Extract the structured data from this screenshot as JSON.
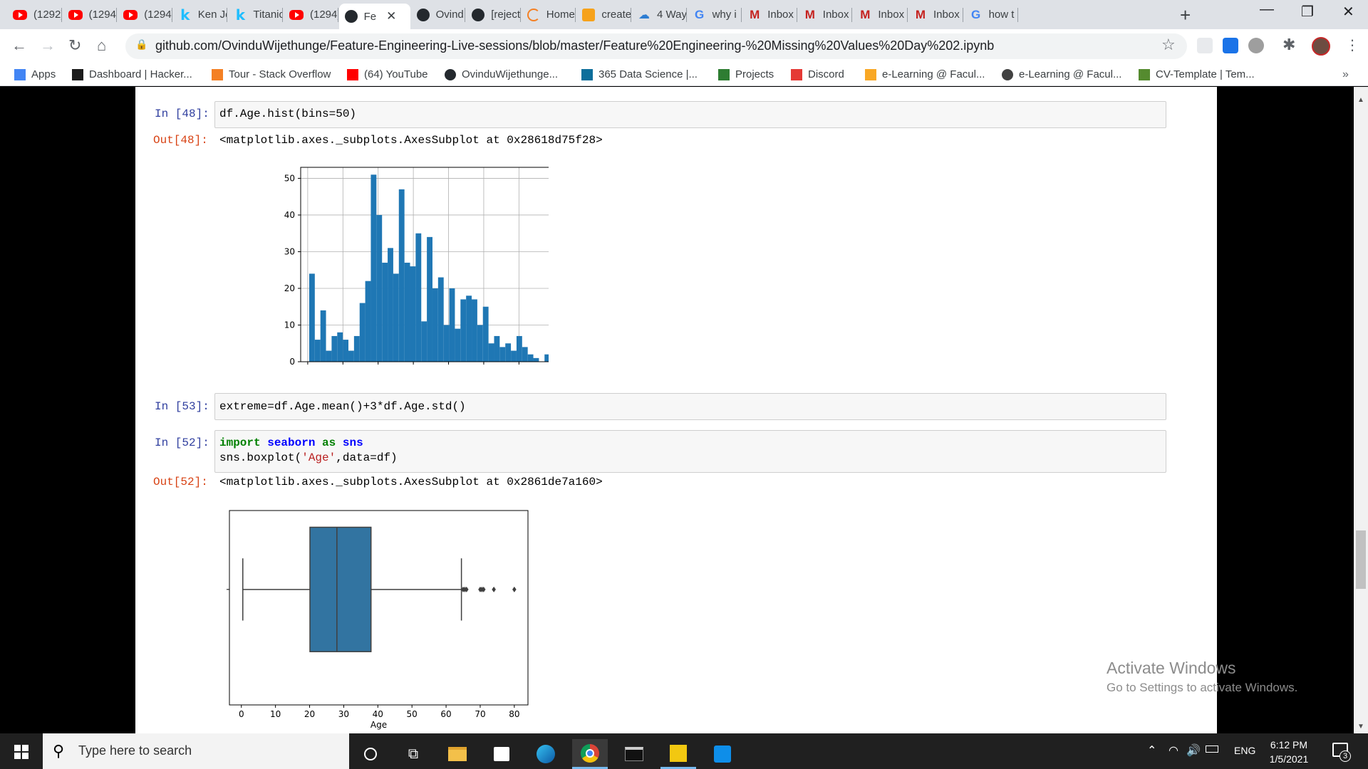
{
  "browser": {
    "tabs": [
      {
        "title": "(1292)",
        "icon": "youtube-icon"
      },
      {
        "title": "(1294)",
        "icon": "youtube-icon"
      },
      {
        "title": "(1294)",
        "icon": "youtube-icon"
      },
      {
        "title": "Ken Je",
        "icon": "kaggle-icon"
      },
      {
        "title": "Titanic",
        "icon": "kaggle-icon"
      },
      {
        "title": "(1294)",
        "icon": "youtube-icon"
      },
      {
        "title": "Fe",
        "icon": "github-icon",
        "active": true
      },
      {
        "title": "Ovind",
        "icon": "github-icon"
      },
      {
        "title": "[reject",
        "icon": "github-icon"
      },
      {
        "title": "Home",
        "icon": "home-loader-icon"
      },
      {
        "title": "create",
        "icon": "create-icon"
      },
      {
        "title": "4 Way",
        "icon": "cloud-icon"
      },
      {
        "title": "why i",
        "icon": "google-icon"
      },
      {
        "title": "Inbox",
        "icon": "gmail-icon"
      },
      {
        "title": "Inbox",
        "icon": "gmail-icon"
      },
      {
        "title": "Inbox",
        "icon": "gmail-icon"
      },
      {
        "title": "Inbox",
        "icon": "gmail-icon"
      },
      {
        "title": "how t",
        "icon": "google-icon"
      }
    ],
    "url": "github.com/OvinduWijethunge/Feature-Engineering-Live-sessions/blob/master/Feature%20Engineering-%20Missing%20Values%20Day%202.ipynb",
    "bookmarks": [
      {
        "label": "Apps",
        "icon": "apps-grid-icon"
      },
      {
        "label": "Dashboard | Hacker...",
        "icon": "hackerrank-icon"
      },
      {
        "label": "Tour - Stack Overflow",
        "icon": "stackoverflow-icon"
      },
      {
        "label": "(64) YouTube",
        "icon": "youtube-icon"
      },
      {
        "label": "OvinduWijethunge...",
        "icon": "github-icon"
      },
      {
        "label": "365 Data Science |...",
        "icon": "datascience-icon"
      },
      {
        "label": "Projects",
        "icon": "projects-icon"
      },
      {
        "label": "Discord",
        "icon": "discord-icon"
      },
      {
        "label": "e-Learning @ Facul...",
        "icon": "elearning-icon"
      },
      {
        "label": "e-Learning @ Facul...",
        "icon": "globe-icon"
      },
      {
        "label": "CV-Template | Tem...",
        "icon": "cv-icon"
      }
    ],
    "bookmarks_more": "»"
  },
  "notebook": {
    "cell48": {
      "in_prompt": "In [48]:",
      "code": "df.Age.hist(bins=50)",
      "out_prompt": "Out[48]:",
      "output": "<matplotlib.axes._subplots.AxesSubplot at 0x28618d75f28>"
    },
    "cell53": {
      "in_prompt": "In [53]:",
      "code": "extreme=df.Age.mean()+3*df.Age.std()"
    },
    "cell52": {
      "in_prompt": "In [52]:",
      "code_line1_kw1": "import",
      "code_line1_name": "seaborn",
      "code_line1_kw2": "as",
      "code_line1_alias": "sns",
      "code_line2_pre": "sns.boxplot(",
      "code_line2_str": "'Age'",
      "code_line2_post": ",data=df)",
      "out_prompt": "Out[52]:",
      "output": "<matplotlib.axes._subplots.AxesSubplot at 0x2861de7a160>"
    }
  },
  "chart_data": [
    {
      "type": "bar",
      "subtype": "histogram",
      "bins": 50,
      "bin_start": 0.42,
      "bin_end": 80,
      "counts": [
        24,
        6,
        14,
        3,
        7,
        8,
        6,
        3,
        7,
        16,
        22,
        51,
        40,
        27,
        31,
        24,
        47,
        27,
        26,
        35,
        11,
        34,
        20,
        23,
        10,
        20,
        9,
        17,
        18,
        17,
        10,
        15,
        5,
        7,
        4,
        5,
        3,
        7,
        4,
        2,
        1,
        0,
        2,
        3,
        1,
        0,
        1,
        0,
        0,
        1
      ],
      "color": "#1f77b4",
      "xlim": [
        -2,
        83
      ],
      "ylim": [
        0,
        53
      ],
      "xticks": [
        0,
        10,
        20,
        30,
        40,
        50,
        60,
        70,
        80
      ],
      "yticks": [
        0,
        10,
        20,
        30,
        40,
        50
      ],
      "grid": true
    },
    {
      "type": "boxplot",
      "orientation": "horizontal",
      "variable": "Age",
      "xlabel": "Age",
      "min_whisker": 0.42,
      "q1": 20.1,
      "median": 28,
      "q3": 38,
      "max_whisker": 64.5,
      "outliers": [
        65,
        65.5,
        66,
        70,
        70.5,
        71,
        74,
        80
      ],
      "xlim": [
        -3.5,
        84
      ],
      "xticks": [
        0,
        10,
        20,
        30,
        40,
        50,
        60,
        70,
        80
      ],
      "color": "#3274a1"
    }
  ],
  "watermark": {
    "title": "Activate Windows",
    "subtitle": "Go to Settings to activate Windows."
  },
  "taskbar": {
    "search_placeholder": "Type here to search",
    "language": "ENG",
    "time": "6:12 PM",
    "date": "1/5/2021",
    "notification_count": "3"
  }
}
